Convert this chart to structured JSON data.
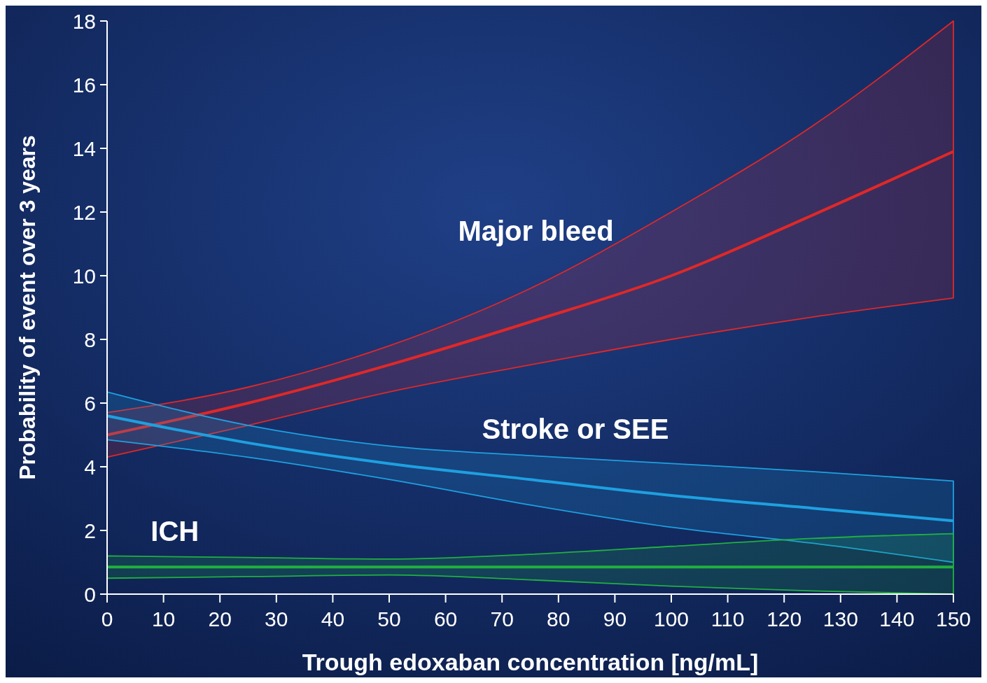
{
  "chart_data": {
    "type": "line",
    "xlabel": "Trough edoxaban concentration [ng/mL]",
    "ylabel": "Probability of event over 3 years",
    "x": [
      0,
      25,
      50,
      75,
      100,
      125,
      150
    ],
    "xlim": [
      0,
      150
    ],
    "xticks": [
      0,
      10,
      20,
      30,
      40,
      50,
      60,
      70,
      80,
      90,
      100,
      110,
      120,
      130,
      140,
      150
    ],
    "ylim": [
      0,
      18
    ],
    "yticks": [
      0,
      2,
      4,
      6,
      8,
      10,
      12,
      14,
      16,
      18
    ],
    "grid": false,
    "marker": "none",
    "line_style": "solid",
    "series": [
      {
        "name": "Major bleed",
        "color": "#e02828",
        "values": [
          5.0,
          6.0,
          7.2,
          8.55,
          10.0,
          11.9,
          13.9
        ],
        "lower": [
          4.3,
          5.3,
          6.35,
          7.2,
          8.0,
          8.7,
          9.3
        ],
        "upper": [
          5.7,
          6.5,
          7.8,
          9.6,
          12.0,
          14.7,
          18.0
        ]
      },
      {
        "name": "Stroke or SEE",
        "color": "#1ea0e0",
        "values": [
          5.6,
          4.75,
          4.1,
          3.6,
          3.1,
          2.7,
          2.3
        ],
        "lower": [
          4.85,
          4.3,
          3.6,
          2.8,
          2.1,
          1.6,
          1.0
        ],
        "upper": [
          6.35,
          5.3,
          4.65,
          4.35,
          4.1,
          3.85,
          3.55
        ]
      },
      {
        "name": "ICH",
        "color": "#20b040",
        "values": [
          0.85,
          0.85,
          0.85,
          0.85,
          0.85,
          0.85,
          0.85
        ],
        "lower": [
          0.5,
          0.55,
          0.6,
          0.45,
          0.25,
          0.1,
          0.0
        ],
        "upper": [
          1.2,
          1.15,
          1.1,
          1.25,
          1.5,
          1.75,
          1.9
        ]
      }
    ]
  }
}
